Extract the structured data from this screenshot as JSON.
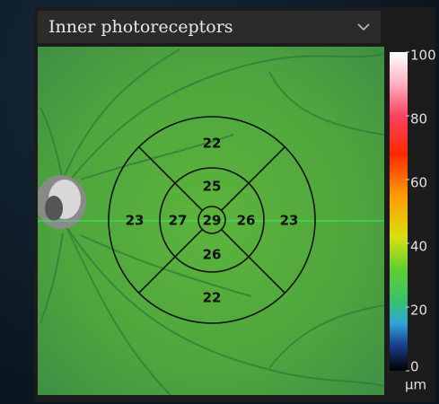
{
  "dropdown": {
    "label": "Inner photoreceptors"
  },
  "thickness_grid": {
    "center": 29,
    "inner": [
      25,
      26,
      26,
      27
    ],
    "outer": [
      22,
      23,
      22,
      23
    ]
  },
  "colorbar": {
    "range": [
      0,
      100
    ],
    "ticks": [
      100,
      80,
      60,
      40,
      20,
      0
    ],
    "unit": "µm"
  }
}
